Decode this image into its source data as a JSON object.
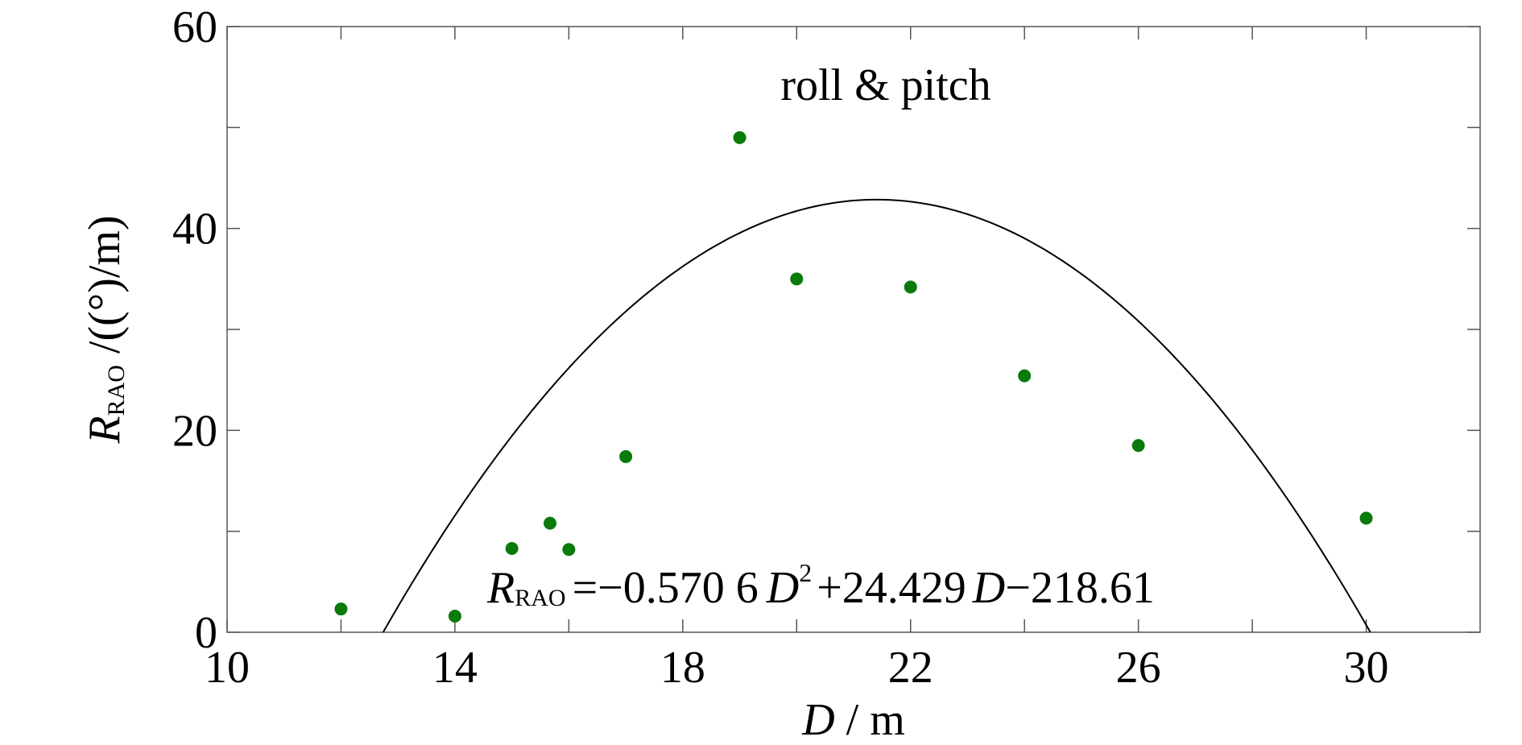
{
  "chart_data": {
    "type": "scatter",
    "annotation": "roll & pitch",
    "xlim": [
      10,
      32
    ],
    "ylim": [
      0,
      60
    ],
    "x_ticks": [
      10,
      14,
      18,
      22,
      26,
      30
    ],
    "y_ticks": [
      0,
      20,
      40,
      60
    ],
    "x_minor_ticks": [
      12,
      16,
      20,
      24,
      28
    ],
    "y_minor_ticks": [
      10,
      30,
      50
    ],
    "xlabel": {
      "var": "D",
      "unit": " / m"
    },
    "ylabel": {
      "var": "R",
      "sub": "RAO",
      "unit": " /((°)/m)"
    },
    "grid": false,
    "point_color": "#0a7a0a",
    "line_color": "#000000",
    "points": [
      {
        "x": 12,
        "y": 2.3
      },
      {
        "x": 14,
        "y": 1.6
      },
      {
        "x": 15,
        "y": 8.3
      },
      {
        "x": 15.67,
        "y": 10.8
      },
      {
        "x": 16,
        "y": 8.2
      },
      {
        "x": 17,
        "y": 17.4
      },
      {
        "x": 19,
        "y": 49.0
      },
      {
        "x": 20,
        "y": 35.0
      },
      {
        "x": 22,
        "y": 34.2
      },
      {
        "x": 24,
        "y": 25.4
      },
      {
        "x": 26,
        "y": 18.5
      },
      {
        "x": 30,
        "y": 11.3
      }
    ],
    "fit": {
      "coefficients": {
        "a": -0.5706,
        "b": 24.429,
        "c": -218.61
      },
      "equation": {
        "lhs_var": "R",
        "lhs_sub": "RAO",
        "part1": "=−0.570 6",
        "var1": "D",
        "exp": "2",
        "part2": "+24.429",
        "var2": "D",
        "part3": "−218.61"
      }
    }
  }
}
